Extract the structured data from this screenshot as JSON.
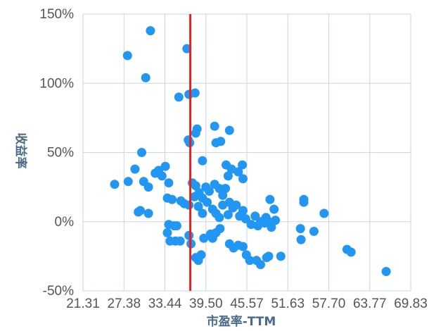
{
  "chart_data": {
    "type": "scatter",
    "xlabel": "市盈率-TTM",
    "ylabel": "收益率",
    "x_ticks": [
      "21.31",
      "27.38",
      "33.44",
      "39.50",
      "45.57",
      "51.63",
      "57.70",
      "63.77",
      "69.83"
    ],
    "y_ticks": [
      "150%",
      "100%",
      "50%",
      "0%",
      "-50%"
    ],
    "xlim": [
      21.31,
      69.83
    ],
    "ylim": [
      -50,
      150
    ],
    "grid": true,
    "reference_line": {
      "x": 37.2,
      "color": "#e8201c"
    },
    "point_color": "#2196f3",
    "points": [
      [
        27.9,
        120
      ],
      [
        31.3,
        138
      ],
      [
        30.6,
        104
      ],
      [
        36.7,
        125
      ],
      [
        35.5,
        90
      ],
      [
        37.0,
        92
      ],
      [
        37.9,
        93
      ],
      [
        38.0,
        64
      ],
      [
        38.2,
        67
      ],
      [
        40.8,
        69
      ],
      [
        43.0,
        66
      ],
      [
        41.0,
        57
      ],
      [
        41.7,
        58
      ],
      [
        37.1,
        57
      ],
      [
        36.9,
        59
      ],
      [
        39.0,
        44
      ],
      [
        30.0,
        50
      ],
      [
        42.5,
        41
      ],
      [
        43.3,
        38
      ],
      [
        44.3,
        36
      ],
      [
        44.9,
        41
      ],
      [
        45.0,
        31
      ],
      [
        42.8,
        33
      ],
      [
        26.0,
        27
      ],
      [
        28.0,
        29
      ],
      [
        29.0,
        38
      ],
      [
        30.3,
        29
      ],
      [
        31.0,
        25
      ],
      [
        32.0,
        35
      ],
      [
        32.5,
        37
      ],
      [
        33.0,
        33
      ],
      [
        33.5,
        40
      ],
      [
        34.0,
        28
      ],
      [
        37.5,
        28
      ],
      [
        38.0,
        26
      ],
      [
        38.5,
        21
      ],
      [
        39.0,
        17
      ],
      [
        39.5,
        25
      ],
      [
        40.0,
        22
      ],
      [
        40.8,
        27
      ],
      [
        41.5,
        24
      ],
      [
        42.0,
        19
      ],
      [
        42.4,
        24
      ],
      [
        43.0,
        14
      ],
      [
        33.8,
        17
      ],
      [
        34.5,
        16
      ],
      [
        35.8,
        15
      ],
      [
        36.3,
        13
      ],
      [
        37.0,
        12
      ],
      [
        37.8,
        18
      ],
      [
        38.4,
        11
      ],
      [
        39.0,
        6
      ],
      [
        39.7,
        14
      ],
      [
        40.5,
        9
      ],
      [
        41.0,
        6
      ],
      [
        41.5,
        3
      ],
      [
        42.0,
        12
      ],
      [
        42.8,
        5
      ],
      [
        43.5,
        10
      ],
      [
        44.0,
        12
      ],
      [
        44.5,
        4
      ],
      [
        45.0,
        8
      ],
      [
        45.4,
        2
      ],
      [
        46.2,
        -2
      ],
      [
        46.8,
        4
      ],
      [
        47.2,
        -3
      ],
      [
        47.6,
        0
      ],
      [
        48.4,
        3
      ],
      [
        48.8,
        0
      ],
      [
        49.2,
        -4
      ],
      [
        49.8,
        1
      ],
      [
        49.6,
        9
      ],
      [
        49.0,
        16
      ],
      [
        48.2,
        -1
      ],
      [
        29.8,
        8
      ],
      [
        29.5,
        7
      ],
      [
        31.0,
        6
      ],
      [
        34.0,
        -2
      ],
      [
        34.8,
        -3
      ],
      [
        35.2,
        -3
      ],
      [
        33.8,
        -8
      ],
      [
        34.2,
        -14
      ],
      [
        35.0,
        -14
      ],
      [
        35.7,
        -14
      ],
      [
        37.0,
        -10
      ],
      [
        37.3,
        -16
      ],
      [
        38.0,
        -26
      ],
      [
        38.4,
        -28
      ],
      [
        38.8,
        -24
      ],
      [
        39.2,
        -12
      ],
      [
        40.2,
        -9
      ],
      [
        40.5,
        -12
      ],
      [
        41.0,
        -8
      ],
      [
        41.6,
        -5
      ],
      [
        43.0,
        -16
      ],
      [
        43.6,
        -19
      ],
      [
        44.3,
        -17
      ],
      [
        45.0,
        -18
      ],
      [
        45.5,
        -24
      ],
      [
        46.0,
        -28
      ],
      [
        47.0,
        -28
      ],
      [
        47.6,
        -31
      ],
      [
        48.5,
        -26
      ],
      [
        48.8,
        -25
      ],
      [
        50.6,
        -25
      ],
      [
        53.5,
        -5
      ],
      [
        53.6,
        -13
      ],
      [
        54.0,
        14
      ],
      [
        54.0,
        16
      ],
      [
        55.5,
        -7
      ],
      [
        57.0,
        6
      ],
      [
        60.4,
        -20
      ],
      [
        61.0,
        -22
      ],
      [
        66.2,
        -36
      ]
    ]
  }
}
